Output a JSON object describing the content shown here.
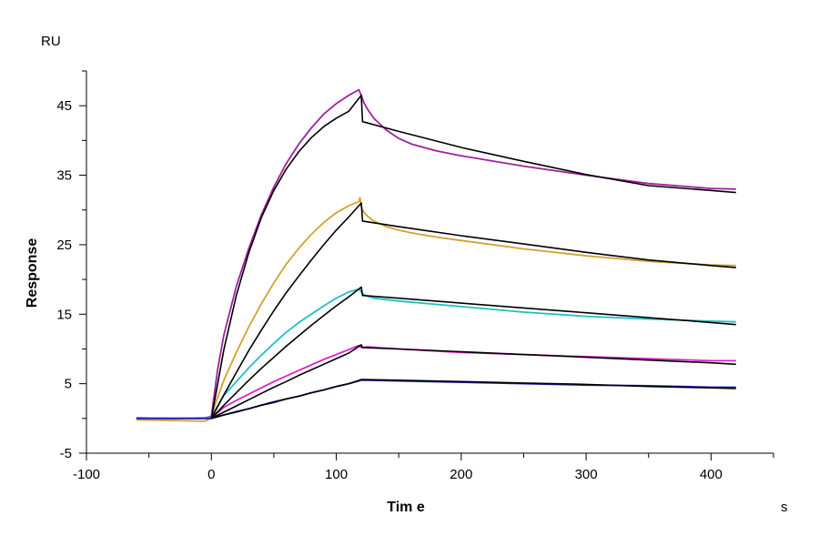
{
  "chart_data": {
    "type": "line",
    "xlabel": "Tim e",
    "ylabel": "Response",
    "x_unit": "s",
    "y_unit": "RU",
    "xlim": [
      -100,
      450
    ],
    "ylim": [
      -5,
      50
    ],
    "x_ticks": [
      -100,
      0,
      100,
      200,
      300,
      400
    ],
    "y_ticks": [
      -5,
      5,
      15,
      25,
      35,
      45
    ],
    "x_tick_labels": [
      "-100",
      "0",
      "100",
      "200",
      "300",
      "400"
    ],
    "y_tick_labels": [
      "-5",
      "5",
      "15",
      "25",
      "35",
      "45"
    ],
    "grid": false,
    "legend": "none",
    "series": [
      {
        "role": "measured",
        "color": "#a020a0",
        "x": [
          -60,
          -30,
          -5,
          0,
          2,
          5,
          10,
          20,
          30,
          40,
          50,
          60,
          70,
          80,
          90,
          100,
          110,
          118,
          120,
          122,
          125,
          130,
          140,
          150,
          160,
          180,
          200,
          250,
          300,
          350,
          400,
          420
        ],
        "y": [
          0.1,
          0.0,
          0.1,
          0.3,
          3,
          7,
          12,
          19,
          24.5,
          29.3,
          33.3,
          36.7,
          39.5,
          41.8,
          43.8,
          45.3,
          46.5,
          47.3,
          46.5,
          45.5,
          44.5,
          43.2,
          41.5,
          40.3,
          39.5,
          38.5,
          37.8,
          36.3,
          35.0,
          33.8,
          33.1,
          33.0
        ]
      },
      {
        "role": "fit",
        "color": "#000000",
        "x": [
          0,
          10,
          20,
          30,
          40,
          50,
          60,
          70,
          80,
          90,
          100,
          110,
          120,
          121,
          150,
          200,
          250,
          300,
          350,
          400,
          420
        ],
        "y": [
          0.0,
          9.9,
          17.7,
          23.9,
          28.9,
          32.8,
          35.9,
          38.4,
          40.4,
          42.0,
          43.2,
          44.2,
          46.5,
          42.7,
          41.3,
          39.0,
          37.0,
          35.1,
          33.5,
          32.8,
          32.5
        ]
      },
      {
        "role": "measured",
        "color": "#d4a030",
        "x": [
          -60,
          -30,
          -5,
          0,
          2,
          5,
          10,
          20,
          30,
          40,
          50,
          60,
          70,
          80,
          90,
          100,
          110,
          118,
          119,
          120,
          122,
          125,
          130,
          140,
          150,
          160,
          180,
          200,
          250,
          300,
          350,
          400,
          420
        ],
        "y": [
          -0.2,
          -0.3,
          -0.4,
          0.1,
          1.5,
          3,
          5.5,
          9.5,
          13.2,
          16.5,
          19.5,
          22.2,
          24.5,
          26.5,
          28.2,
          29.6,
          30.6,
          31.2,
          31.8,
          30.5,
          29.7,
          29.1,
          28.4,
          27.6,
          27.1,
          26.7,
          26.1,
          25.6,
          24.4,
          23.4,
          22.6,
          22.1,
          22.0
        ]
      },
      {
        "role": "fit",
        "color": "#000000",
        "x": [
          0,
          10,
          20,
          30,
          40,
          50,
          60,
          70,
          80,
          90,
          100,
          110,
          120,
          121,
          150,
          200,
          250,
          300,
          350,
          400,
          420
        ],
        "y": [
          0.0,
          3.4,
          6.6,
          9.8,
          12.7,
          15.5,
          18.1,
          20.5,
          22.8,
          25.0,
          27.1,
          29.0,
          31.0,
          28.4,
          27.6,
          26.3,
          25.1,
          23.9,
          22.8,
          22.0,
          21.7
        ]
      },
      {
        "role": "measured",
        "color": "#20c0c0",
        "x": [
          -60,
          -30,
          -5,
          0,
          5,
          10,
          20,
          30,
          40,
          50,
          60,
          70,
          80,
          90,
          100,
          110,
          118,
          120,
          122,
          125,
          130,
          150,
          200,
          250,
          300,
          350,
          400,
          420
        ],
        "y": [
          0.1,
          0.0,
          0.1,
          0.2,
          1.8,
          3.3,
          5.3,
          7.3,
          9.1,
          10.8,
          12.4,
          13.8,
          15.0,
          16.2,
          17.3,
          18.2,
          18.6,
          18.2,
          17.8,
          17.6,
          17.3,
          16.9,
          16.1,
          15.3,
          14.7,
          14.3,
          14.0,
          13.9
        ]
      },
      {
        "role": "fit",
        "color": "#000000",
        "x": [
          0,
          10,
          20,
          30,
          40,
          50,
          60,
          70,
          80,
          90,
          100,
          110,
          120,
          121,
          150,
          200,
          250,
          300,
          350,
          400,
          420
        ],
        "y": [
          0.0,
          1.9,
          3.7,
          5.5,
          7.2,
          8.8,
          10.4,
          11.9,
          13.4,
          14.8,
          16.2,
          17.5,
          18.9,
          17.7,
          17.3,
          16.6,
          15.9,
          15.2,
          14.5,
          13.8,
          13.5
        ]
      },
      {
        "role": "measured",
        "color": "#e020d0",
        "x": [
          -60,
          -30,
          -5,
          0,
          5,
          10,
          20,
          30,
          40,
          50,
          60,
          70,
          80,
          90,
          100,
          110,
          118,
          120,
          125,
          150,
          200,
          250,
          300,
          350,
          400,
          420
        ],
        "y": [
          0.0,
          0.0,
          0.0,
          0.1,
          0.8,
          1.6,
          2.6,
          3.5,
          4.4,
          5.3,
          6.1,
          6.9,
          7.7,
          8.5,
          9.2,
          9.9,
          10.5,
          10.2,
          10.3,
          10.0,
          9.5,
          9.2,
          8.9,
          8.6,
          8.3,
          8.3
        ]
      },
      {
        "role": "fit",
        "color": "#000000",
        "x": [
          0,
          10,
          20,
          30,
          40,
          50,
          60,
          70,
          80,
          90,
          100,
          110,
          120,
          121,
          150,
          200,
          250,
          300,
          350,
          400,
          420
        ],
        "y": [
          0.0,
          0.9,
          1.8,
          2.7,
          3.6,
          4.5,
          5.3,
          6.2,
          7.0,
          7.8,
          8.6,
          9.4,
          10.6,
          10.2,
          10.0,
          9.6,
          9.2,
          8.8,
          8.4,
          8.0,
          7.8
        ]
      },
      {
        "role": "measured",
        "color": "#2020c0",
        "x": [
          -60,
          -30,
          -5,
          0,
          10,
          20,
          30,
          40,
          50,
          60,
          70,
          80,
          90,
          100,
          110,
          118,
          120,
          125,
          150,
          200,
          250,
          300,
          350,
          400,
          420
        ],
        "y": [
          0.0,
          0.0,
          0.0,
          0.0,
          0.5,
          1.0,
          1.4,
          1.9,
          2.4,
          2.8,
          3.2,
          3.7,
          4.1,
          4.6,
          5.0,
          5.4,
          5.5,
          5.5,
          5.4,
          5.2,
          5.0,
          4.8,
          4.7,
          4.5,
          4.5
        ]
      },
      {
        "role": "fit",
        "color": "#000000",
        "x": [
          0,
          10,
          20,
          30,
          40,
          50,
          60,
          70,
          80,
          90,
          100,
          110,
          120,
          121,
          150,
          200,
          250,
          300,
          350,
          400,
          420
        ],
        "y": [
          0.0,
          0.5,
          0.9,
          1.4,
          1.9,
          2.3,
          2.8,
          3.2,
          3.7,
          4.1,
          4.6,
          5.0,
          5.6,
          5.6,
          5.5,
          5.3,
          5.1,
          4.9,
          4.6,
          4.4,
          4.3
        ]
      }
    ]
  }
}
